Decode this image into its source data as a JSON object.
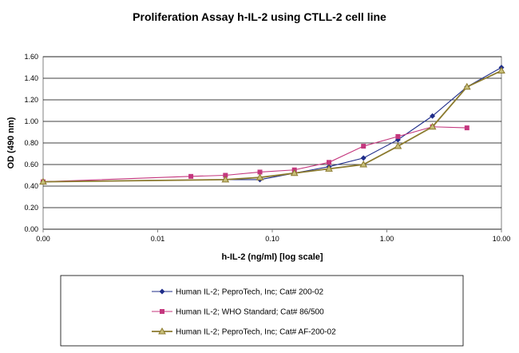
{
  "chart_data": {
    "type": "line",
    "title": "Proliferation Assay h-IL-2 using CTLL-2 cell line",
    "xlabel": "h-IL-2 (ng/ml) [log scale]",
    "ylabel": "OD (490 nm)",
    "x_scale": "log",
    "xlim": [
      0.001,
      10
    ],
    "ylim": [
      0,
      1.6
    ],
    "x_tick_labels": [
      "0.00",
      "0.01",
      "0.10",
      "1.00",
      "10.00"
    ],
    "x_tick_values": [
      0.001,
      0.01,
      0.1,
      1,
      10
    ],
    "y_tick_labels": [
      "0.00",
      "0.20",
      "0.40",
      "0.60",
      "0.80",
      "1.00",
      "1.20",
      "1.40",
      "1.60"
    ],
    "y_tick_values": [
      0,
      0.2,
      0.4,
      0.6,
      0.8,
      1.0,
      1.2,
      1.4,
      1.6
    ],
    "grid": "horizontal",
    "legend_position": "bottom",
    "series": [
      {
        "name": "Human IL-2; PeproTech, Inc; Cat# 200-02",
        "color": "#1f2d8a",
        "marker": "diamond",
        "x": [
          0.001,
          0.039,
          0.078,
          0.156,
          0.3125,
          0.625,
          1.25,
          2.5,
          5,
          10
        ],
        "y": [
          0.44,
          0.46,
          0.46,
          0.52,
          0.58,
          0.66,
          0.83,
          1.05,
          1.32,
          1.5
        ]
      },
      {
        "name": "Human IL-2; WHO Standard; Cat# 86/500",
        "color": "#c4377e",
        "marker": "square",
        "x": [
          0.001,
          0.0195,
          0.039,
          0.078,
          0.156,
          0.3125,
          0.625,
          1.25,
          2.5,
          5
        ],
        "y": [
          0.44,
          0.49,
          0.5,
          0.53,
          0.55,
          0.62,
          0.77,
          0.86,
          0.95,
          0.94
        ]
      },
      {
        "name": "Human IL-2; PeproTech, Inc; Cat# AF-200-02",
        "color": "#8b7a2e",
        "marker": "triangle",
        "x": [
          0.001,
          0.039,
          0.078,
          0.156,
          0.3125,
          0.625,
          1.25,
          2.5,
          5,
          10
        ],
        "y": [
          0.44,
          0.46,
          0.48,
          0.52,
          0.56,
          0.6,
          0.77,
          0.95,
          1.32,
          1.47
        ]
      }
    ]
  }
}
